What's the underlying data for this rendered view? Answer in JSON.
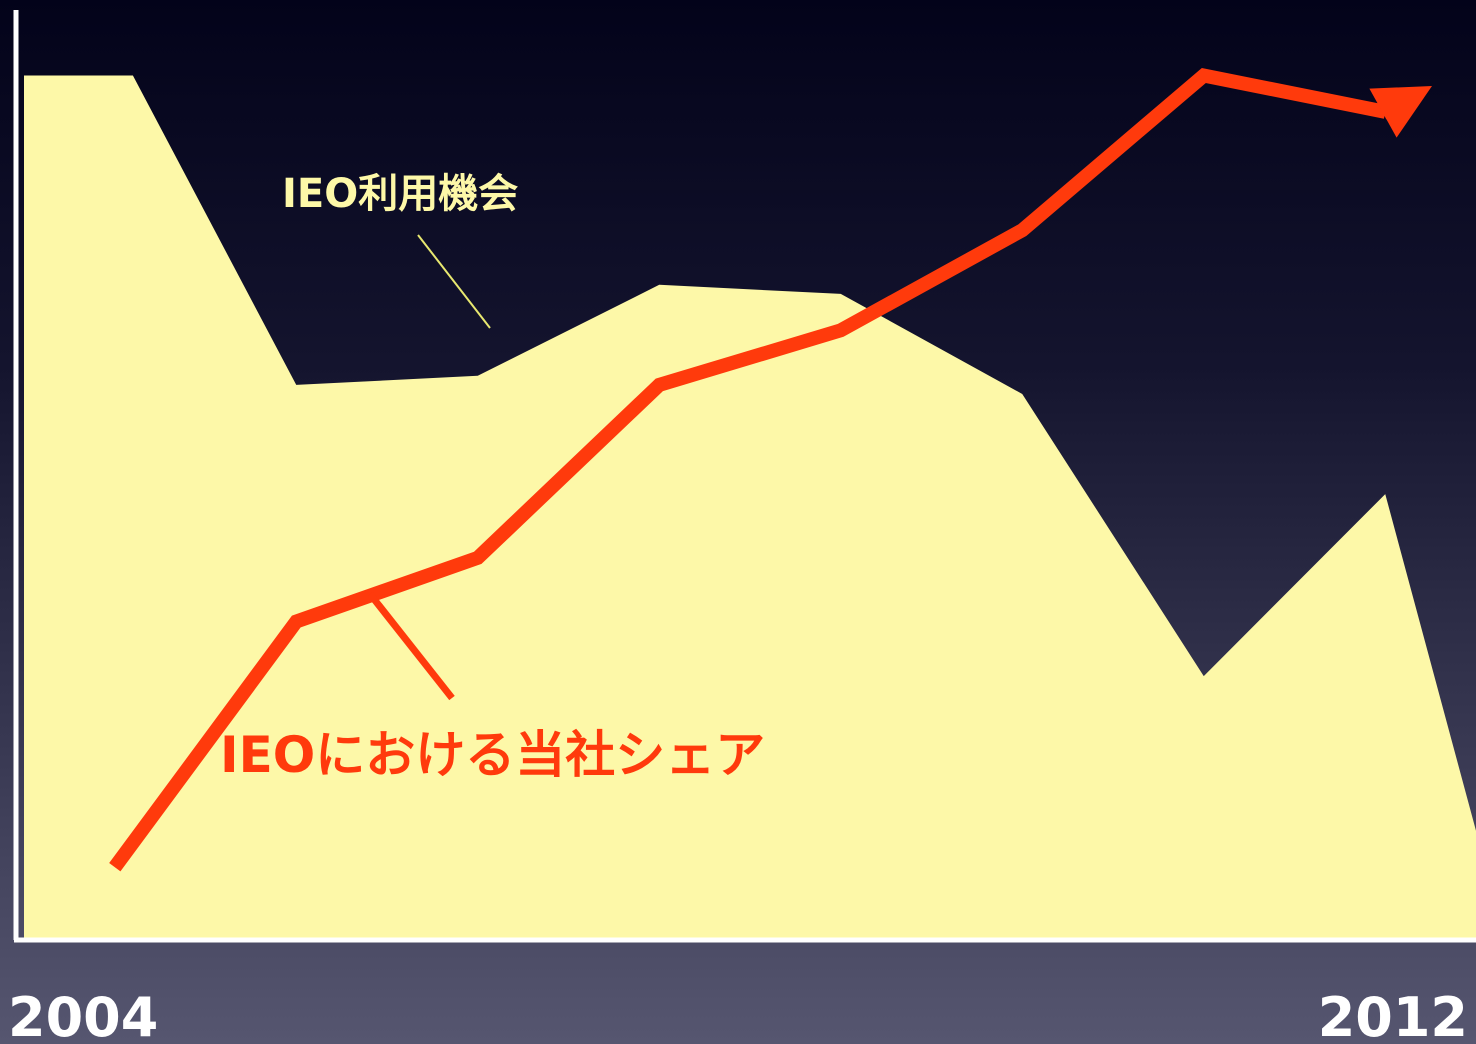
{
  "chart_data": {
    "type": "area",
    "x_ticks": [
      "2004",
      "2012"
    ],
    "xlim": [
      2004,
      2012
    ],
    "ylim": [
      0,
      100
    ],
    "grid": false,
    "series": [
      {
        "name": "IEO利用機会",
        "kind": "area",
        "color": "#fdf8a8",
        "x": [
          2004,
          2004.6,
          2005.5,
          2006.5,
          2007.5,
          2008.5,
          2009.5,
          2010.5,
          2011.5,
          2012
        ],
        "y": [
          95,
          95,
          61,
          62,
          72,
          71,
          60,
          29,
          49,
          12
        ]
      },
      {
        "name": "IEOにおける当社シェア",
        "kind": "line",
        "color": "#ff3a0c",
        "x": [
          2004.5,
          2005.5,
          2006.5,
          2007.5,
          2008.5,
          2009.5,
          2010.5,
          2011.5,
          2012.5
        ],
        "y": [
          8,
          35,
          42,
          61,
          67,
          78,
          95,
          91,
          100
        ]
      }
    ]
  }
}
